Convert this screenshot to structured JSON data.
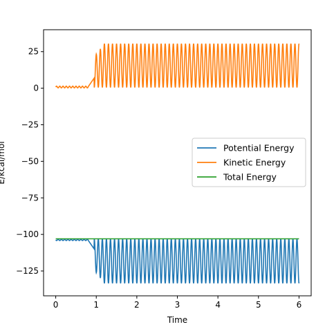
{
  "chart_data": {
    "type": "line",
    "xlabel": "Time",
    "ylabel": "E/kcal/mol",
    "xlim": [
      -0.3,
      6.3
    ],
    "ylim": [
      -142,
      40
    ],
    "xticks": [
      0,
      1,
      2,
      3,
      4,
      5,
      6
    ],
    "yticks": [
      25,
      0,
      -25,
      -50,
      -75,
      -100,
      -125
    ],
    "ytick_labels": [
      "25",
      "0",
      "−25",
      "−50",
      "−75",
      "−100",
      "−125"
    ],
    "xtick_labels": [
      "0",
      "1",
      "2",
      "3",
      "4",
      "5",
      "6"
    ],
    "legend_position": "center-right",
    "grid": false,
    "series": [
      {
        "name": "Potential Energy",
        "color": "#1f77b4",
        "description_values": {
          "initial": -103.5,
          "early_min": -104.5,
          "oscillation_start": 0.95,
          "oscillation_min": -133.5,
          "oscillation_max": -103.0,
          "oscillation_period": 0.1,
          "x_end": 6.0
        }
      },
      {
        "name": "Kinetic Energy",
        "color": "#ff7f0e",
        "description_values": {
          "initial": 0.5,
          "early_max": 1.5,
          "oscillation_start": 0.95,
          "oscillation_min": 0.5,
          "oscillation_max": 30.5,
          "oscillation_period": 0.1,
          "x_end": 6.0
        }
      },
      {
        "name": "Total Energy",
        "color": "#2ca02c",
        "x": [
          0,
          6
        ],
        "y": [
          -103,
          -103
        ]
      }
    ]
  }
}
